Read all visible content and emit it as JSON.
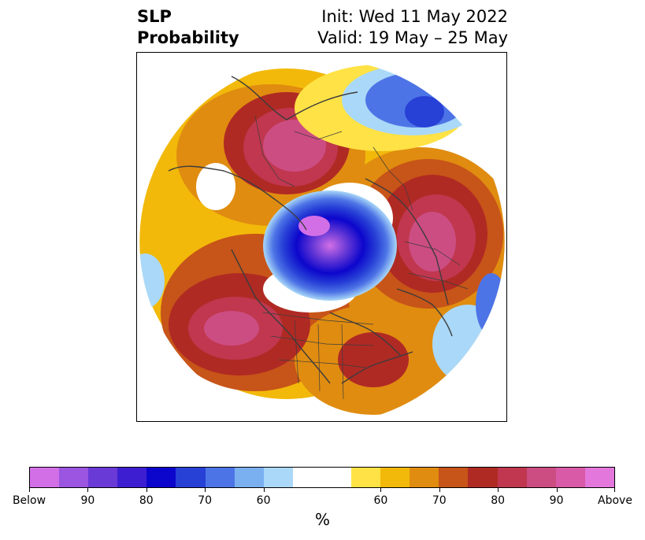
{
  "header": {
    "title_line1": "SLP",
    "title_line2": "Probability",
    "init_text": "Init: Wed 11 May 2022",
    "valid_text": "Valid: 19 May – 25 May"
  },
  "map": {
    "projection": "north-polar-stereographic",
    "features": [
      "coastlines",
      "country-borders",
      "state-province-borders"
    ],
    "anomalies": [
      {
        "region": "Arctic / North Pole",
        "category": "Below",
        "max_level": "Below"
      },
      {
        "region": "Northern Europe / Scandinavia",
        "category": "Below",
        "max_level": "70"
      },
      {
        "region": "Eastern Siberia",
        "category": "Above",
        "max_level": "90"
      },
      {
        "region": "Western Russia",
        "category": "Above",
        "max_level": "90"
      },
      {
        "region": "North Pacific / Gulf of Alaska",
        "category": "Above",
        "max_level": "90"
      },
      {
        "region": "Eastern North America",
        "category": "Above",
        "max_level": "80"
      }
    ]
  },
  "colorbar": {
    "colors": [
      "#d26fe6",
      "#9b55e0",
      "#6a3ad6",
      "#3d1fd1",
      "#0c06cc",
      "#2740d6",
      "#4d74e6",
      "#7ab0f0",
      "#aad8f8",
      "#ffffff",
      "#ffffff",
      "#ffe245",
      "#f2b90a",
      "#e08c10",
      "#c75418",
      "#b02a24",
      "#c0374f",
      "#cc4d82",
      "#d95aa6",
      "#e377db"
    ],
    "labels": [
      "Below",
      "90",
      "80",
      "70",
      "60",
      "60",
      "70",
      "80",
      "90",
      "Above"
    ],
    "unit": "%"
  }
}
